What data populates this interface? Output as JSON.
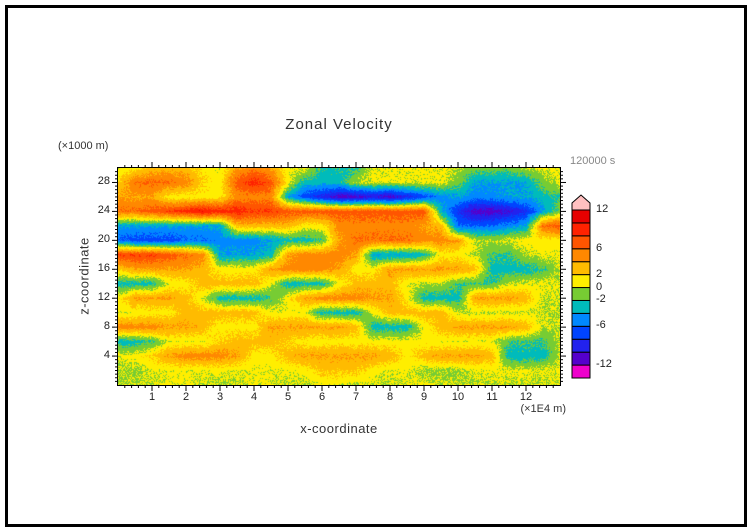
{
  "figure": {
    "title": "Zonal Velocity",
    "timestamp_label": "120000 s",
    "x_axis": {
      "label": "x-coordinate",
      "units_label": "(×1E4 m)",
      "ticks": [
        1,
        2,
        3,
        4,
        5,
        6,
        7,
        8,
        9,
        10,
        11,
        12
      ],
      "range": [
        0,
        13
      ],
      "minor_step": 0.2
    },
    "z_axis": {
      "label": "z-coordinate",
      "units_label": "(×1000 m)",
      "ticks": [
        4,
        8,
        12,
        16,
        20,
        24,
        28
      ],
      "range": [
        0,
        30
      ],
      "minor_step": 0.5
    }
  },
  "chart_data": {
    "type": "heatmap",
    "style": "filled-contour",
    "title": "Zonal Velocity",
    "xlabel": "x-coordinate (×1E4 m)",
    "ylabel": "z-coordinate (×1000 m)",
    "time": "120000 s",
    "x_range": [
      0,
      13
    ],
    "z_range": [
      0,
      30
    ],
    "contour_interval": 2,
    "contour_levels": [
      -12,
      -10,
      -8,
      -6,
      -4,
      -2,
      0,
      2,
      4,
      6,
      8,
      10,
      12
    ],
    "colorbar_labels": [
      12,
      6,
      2,
      0,
      -2,
      -6,
      -12
    ],
    "band_colors": [
      "#ee00cc",
      "#5500cc",
      "#2222ee",
      "#0044ff",
      "#0088ff",
      "#00bbbb",
      "#77cc33",
      "#ffee00",
      "#ffbb00",
      "#ff8800",
      "#ff5500",
      "#ff2200",
      "#e60000",
      "#ffc0c0"
    ],
    "grid_x": [
      0,
      0.5,
      1,
      1.5,
      2,
      2.5,
      3,
      3.5,
      4,
      4.5,
      5,
      5.5,
      6,
      6.5,
      7,
      7.5,
      8,
      8.5,
      9,
      9.5,
      10,
      10.5,
      11,
      11.5,
      12,
      12.5,
      13
    ],
    "grid_z": [
      30,
      28,
      26,
      24,
      22,
      20,
      18,
      16,
      14,
      12,
      10,
      8,
      6,
      4,
      2,
      0
    ],
    "values": [
      [
        0.5,
        1,
        3,
        3,
        3,
        1,
        0.5,
        4,
        5,
        4,
        0.5,
        0.5,
        -2.5,
        -2.5,
        -2.5,
        0.5,
        0.5,
        0.5,
        0.5,
        0.5,
        0,
        -1,
        -1,
        -1,
        0,
        0.5,
        0.5
      ],
      [
        2,
        6,
        6,
        6,
        5,
        2,
        1,
        7,
        9,
        7,
        1,
        -3,
        -3,
        -3,
        0,
        0.5,
        0.5,
        0.5,
        0.5,
        0.5,
        -1,
        -4,
        -4,
        -4,
        -4,
        -1,
        0.5
      ],
      [
        4,
        4,
        4,
        1,
        1,
        1,
        1,
        5,
        5,
        5,
        -4,
        -7,
        -9,
        -11,
        -11,
        -10,
        -11,
        -9,
        -7,
        -5,
        -4,
        -5,
        -5,
        -4,
        -4,
        -3,
        -2
      ],
      [
        6,
        6,
        7,
        8,
        9,
        10,
        9,
        9,
        8,
        8,
        7,
        7,
        7,
        7,
        7,
        7,
        7,
        7,
        7,
        -3,
        -8,
        -11,
        -11,
        -10,
        -8,
        -4,
        -1
      ],
      [
        -4,
        -4,
        -4,
        -4,
        -4,
        -4,
        -4,
        3,
        3,
        3,
        3,
        1,
        1,
        5,
        5,
        5,
        5,
        5,
        4,
        3,
        -6,
        -6,
        -6,
        -5,
        -4,
        6,
        7
      ],
      [
        -6,
        -7,
        -7,
        -7,
        -6,
        -6,
        -5,
        -5,
        -5,
        -4,
        -3,
        -3,
        -2,
        4,
        6,
        6,
        6,
        6,
        5,
        5,
        4,
        0,
        0,
        0.5,
        1,
        1,
        1
      ],
      [
        8,
        8,
        8,
        7,
        6,
        5,
        -4,
        -4,
        -4,
        -3,
        4,
        5,
        5,
        5,
        4,
        -4,
        -4,
        -4,
        -3,
        1,
        1,
        0,
        -2,
        -2,
        0,
        0.5,
        0.5
      ],
      [
        2,
        4,
        4,
        4,
        4,
        3,
        1,
        1,
        1,
        4,
        5,
        5,
        5,
        4,
        1,
        1,
        4,
        4,
        4,
        4,
        4,
        3,
        -3,
        -3,
        -3,
        -2,
        0
      ],
      [
        -3,
        -3,
        -3,
        0.5,
        1,
        3,
        3,
        3,
        3,
        0.5,
        -3,
        -3,
        -3,
        0.5,
        3,
        3,
        3,
        0.5,
        0,
        0,
        -2,
        -2,
        -2,
        0,
        0.5,
        0.5,
        0.5
      ],
      [
        1,
        4,
        4,
        4,
        3,
        0,
        -3,
        -3,
        -3,
        -2,
        1,
        4,
        5,
        5,
        5,
        4,
        4,
        1,
        -3,
        -3,
        -3,
        4,
        4,
        4,
        3,
        0,
        0
      ],
      [
        0.5,
        0.5,
        1,
        1,
        3,
        3,
        3,
        3,
        3,
        0.5,
        0.5,
        0.5,
        -3,
        -3,
        -3,
        0.5,
        3,
        3,
        3,
        3,
        0,
        0,
        0,
        0,
        0,
        0,
        0
      ],
      [
        5,
        5,
        5,
        4,
        4,
        3,
        1,
        1,
        1,
        4,
        4,
        4,
        4,
        4,
        3,
        -3,
        -3,
        -3,
        0.5,
        3,
        4,
        4,
        4,
        4,
        3,
        0,
        0
      ],
      [
        -3,
        -3,
        -2,
        0.5,
        0.5,
        0.5,
        2,
        3,
        3,
        3,
        2,
        1,
        1,
        1,
        1,
        1,
        1,
        1,
        1,
        0.5,
        0.5,
        0.5,
        0.5,
        -2,
        -2,
        -2,
        0
      ],
      [
        0.5,
        1,
        2,
        4,
        5,
        5,
        5,
        4,
        1,
        1,
        3,
        4,
        4,
        4,
        4,
        4,
        3,
        1,
        3,
        4,
        4,
        4,
        3,
        -3,
        -3,
        -3,
        0
      ],
      [
        -0.5,
        -0.5,
        0.5,
        0.5,
        0.5,
        0.5,
        0.5,
        0.5,
        0.5,
        0.5,
        0.5,
        1,
        2.5,
        2.5,
        2.5,
        1,
        0.5,
        0.5,
        -0.5,
        -0.5,
        -0.5,
        0.5,
        0.5,
        0.5,
        0.5,
        0.5,
        0.5
      ],
      [
        0,
        0,
        0,
        0.5,
        0.5,
        0,
        0,
        0,
        0.5,
        0.5,
        0,
        0,
        0.5,
        0.5,
        0,
        0,
        0,
        0.5,
        0.5,
        0,
        0,
        0,
        0,
        0,
        0,
        0,
        0
      ]
    ]
  }
}
